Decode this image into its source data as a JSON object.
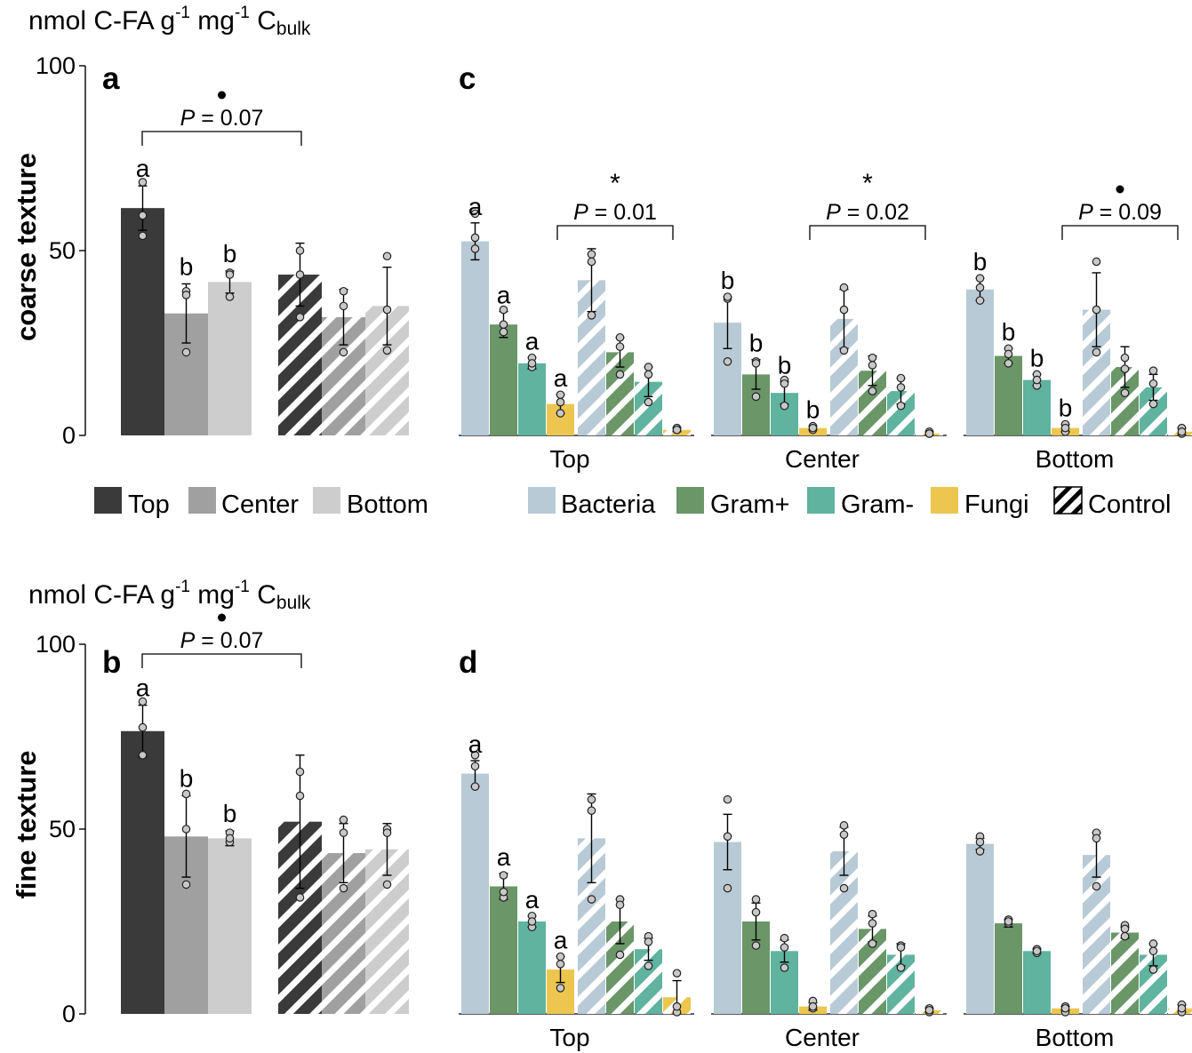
{
  "units_label": {
    "main": "nmol C-FA g",
    "sup1": "-1",
    "mid": " mg",
    "sup2": "-1",
    "c": " C",
    "sub": "bulk"
  },
  "row_labels": {
    "coarse": "coarse texture",
    "fine": "fine texture"
  },
  "colors": {
    "Top": "#3a3a3a",
    "Center": "#a0a0a0",
    "Bottom": "#cdcdcd",
    "Bacteria": "#b8cad6",
    "Gram+": "#6a9668",
    "Gram-": "#5fb39f",
    "Fungi": "#ecc64f"
  },
  "legend_depth": [
    "Top",
    "Center",
    "Bottom"
  ],
  "legend_group": [
    "Bacteria",
    "Gram+",
    "Gram-",
    "Fungi",
    "Control"
  ],
  "chart_data": [
    {
      "panel": "a",
      "type": "bar",
      "texture": "coarse texture",
      "ylabel": "nmol C-FA g-1 mg-1 Cbulk",
      "ylim": [
        0,
        100
      ],
      "yticks": [
        0,
        50,
        100
      ],
      "series": [
        {
          "name": "Top",
          "treatment": 61.5,
          "treatment_err": 6,
          "treatment_pts": [
            68.5,
            54,
            59.5
          ],
          "treatment_letter": "a",
          "control": 43.5,
          "control_err": 8.5,
          "control_pts": [
            50,
            32,
            43.5
          ]
        },
        {
          "name": "Center",
          "treatment": 33,
          "treatment_err": 8,
          "treatment_pts": [
            39,
            22.5,
            38
          ],
          "treatment_letter": "b",
          "control": 32,
          "control_err": 7.5,
          "control_pts": [
            39,
            22.5,
            35
          ]
        },
        {
          "name": "Bottom",
          "treatment": 41.5,
          "treatment_err": 3,
          "treatment_pts": [
            44,
            37.5,
            43.5
          ],
          "treatment_letter": "b",
          "control": 35,
          "control_err": 10.5,
          "control_pts": [
            48.5,
            23,
            34
          ]
        }
      ],
      "annotation": {
        "marker": "•",
        "p_label": "P",
        "p_value": " = 0.07"
      }
    },
    {
      "panel": "b",
      "type": "bar",
      "texture": "fine texture",
      "ylabel": "nmol C-FA g-1 mg-1 Cbulk",
      "ylim": [
        0,
        100
      ],
      "yticks": [
        0,
        50,
        100
      ],
      "series": [
        {
          "name": "Top",
          "treatment": 76.5,
          "treatment_err": 7,
          "treatment_pts": [
            84.5,
            70,
            77.5
          ],
          "treatment_letter": "a",
          "control": 52,
          "control_err": 18,
          "control_pts": [
            65.5,
            31.5,
            59
          ]
        },
        {
          "name": "Center",
          "treatment": 48,
          "treatment_err": 11,
          "treatment_pts": [
            59.5,
            35,
            50
          ],
          "treatment_letter": "b",
          "control": 43.5,
          "control_err": 8,
          "control_pts": [
            52.5,
            34,
            49
          ]
        },
        {
          "name": "Bottom",
          "treatment": 47.5,
          "treatment_err": 2,
          "treatment_pts": [
            49,
            46.5,
            47.5
          ],
          "treatment_letter": "b",
          "control": 44.5,
          "control_err": 7,
          "control_pts": [
            50,
            35,
            49
          ]
        }
      ],
      "annotation": {
        "marker": "•",
        "p_label": "P",
        "p_value": " = 0.07"
      }
    },
    {
      "panel": "c",
      "type": "bar",
      "texture": "coarse texture",
      "ylim": [
        0,
        100
      ],
      "categories": [
        "Top",
        "Center",
        "Bottom"
      ],
      "groups": [
        {
          "category": "Top",
          "treatment": [
            {
              "name": "Bacteria",
              "value": 52.5,
              "err": 5,
              "pts": [
                60,
                50.5,
                53.5
              ],
              "letter": "a"
            },
            {
              "name": "Gram+",
              "value": 30,
              "err": 3.5,
              "pts": [
                34,
                28,
                30
              ],
              "letter": "a"
            },
            {
              "name": "Gram-",
              "value": 19.5,
              "err": 1.5,
              "pts": [
                21,
                18.5,
                19.5
              ],
              "letter": "a"
            },
            {
              "name": "Fungi",
              "value": 8.5,
              "err": 2.5,
              "pts": [
                11,
                6,
                9
              ],
              "letter": "a"
            }
          ],
          "control": [
            {
              "name": "Bacteria",
              "value": 42,
              "err": 8.5,
              "pts": [
                49,
                32.5,
                47
              ]
            },
            {
              "name": "Gram+",
              "value": 22.5,
              "err": 4,
              "pts": [
                26.5,
                16.5,
                24
              ]
            },
            {
              "name": "Gram-",
              "value": 14.5,
              "err": 4,
              "pts": [
                18.5,
                9,
                16.5
              ]
            },
            {
              "name": "Fungi",
              "value": 1.5,
              "err": 0.5,
              "pts": [
                2,
                1.5,
                1.5
              ]
            }
          ],
          "annotation": {
            "marker": "*",
            "p_label": "P",
            "p_value": " = 0.01"
          }
        },
        {
          "category": "Center",
          "treatment": [
            {
              "name": "Bacteria",
              "value": 30.5,
              "err": 7,
              "pts": [
                37,
                20,
                37.5
              ],
              "letter": "b"
            },
            {
              "name": "Gram+",
              "value": 16.5,
              "err": 4,
              "pts": [
                20,
                10.5,
                19.5
              ],
              "letter": "b"
            },
            {
              "name": "Gram-",
              "value": 11.5,
              "err": 3,
              "pts": [
                15,
                8,
                14
              ],
              "letter": "b"
            },
            {
              "name": "Fungi",
              "value": 2,
              "err": 0.5,
              "pts": [
                2.5,
                1.5,
                2
              ],
              "letter": "b"
            }
          ],
          "control": [
            {
              "name": "Bacteria",
              "value": 31.5,
              "err": 8,
              "pts": [
                40,
                23,
                34
              ]
            },
            {
              "name": "Gram+",
              "value": 17.5,
              "err": 4,
              "pts": [
                21,
                12,
                19
              ]
            },
            {
              "name": "Gram-",
              "value": 12,
              "err": 3.5,
              "pts": [
                15.5,
                8,
                13
              ]
            },
            {
              "name": "Fungi",
              "value": 0.5,
              "err": 0.5,
              "pts": [
                1,
                0.5,
                0.5
              ]
            }
          ],
          "annotation": {
            "marker": "*",
            "p_label": "P",
            "p_value": " = 0.02"
          }
        },
        {
          "category": "Bottom",
          "treatment": [
            {
              "name": "Bacteria",
              "value": 39.5,
              "err": 3,
              "pts": [
                42.5,
                36.5,
                40
              ],
              "letter": "b"
            },
            {
              "name": "Gram+",
              "value": 21.5,
              "err": 2,
              "pts": [
                23.5,
                19.5,
                22
              ],
              "letter": "b"
            },
            {
              "name": "Gram-",
              "value": 15,
              "err": 1.5,
              "pts": [
                16.5,
                13.5,
                15
              ],
              "letter": "b"
            },
            {
              "name": "Fungi",
              "value": 2,
              "err": 1,
              "pts": [
                3,
                1,
                2
              ],
              "letter": "b"
            }
          ],
          "control": [
            {
              "name": "Bacteria",
              "value": 34,
              "err": 10,
              "pts": [
                47,
                22.5,
                34
              ]
            },
            {
              "name": "Gram+",
              "value": 18.5,
              "err": 5.5,
              "pts": [
                21,
                11.5,
                18
              ]
            },
            {
              "name": "Gram-",
              "value": 13,
              "err": 3.5,
              "pts": [
                17.5,
                8.5,
                14
              ]
            },
            {
              "name": "Fungi",
              "value": 1,
              "err": 1,
              "pts": [
                2,
                0.5,
                1
              ]
            }
          ],
          "annotation": {
            "marker": "•",
            "p_label": "P",
            "p_value": " = 0.09"
          }
        }
      ]
    },
    {
      "panel": "d",
      "type": "bar",
      "texture": "fine texture",
      "ylim": [
        0,
        100
      ],
      "categories": [
        "Top",
        "Center",
        "Bottom"
      ],
      "groups": [
        {
          "category": "Top",
          "treatment": [
            {
              "name": "Bacteria",
              "value": 65,
              "err": 3.5,
              "pts": [
                70,
                61.5,
                67
              ],
              "letter": "a"
            },
            {
              "name": "Gram+",
              "value": 34.5,
              "err": 3.5,
              "pts": [
                37.5,
                31.5,
                33
              ],
              "letter": "a"
            },
            {
              "name": "Gram-",
              "value": 25,
              "err": 1.5,
              "pts": [
                26.5,
                23.5,
                25
              ],
              "letter": "a"
            },
            {
              "name": "Fungi",
              "value": 12,
              "err": 3.5,
              "pts": [
                15.5,
                7,
                13.5
              ],
              "letter": "a"
            }
          ],
          "control": [
            {
              "name": "Bacteria",
              "value": 47.5,
              "err": 12,
              "pts": [
                58,
                31,
                55
              ]
            },
            {
              "name": "Gram+",
              "value": 25,
              "err": 6,
              "pts": [
                31,
                16,
                29.5
              ]
            },
            {
              "name": "Gram-",
              "value": 17.5,
              "err": 3,
              "pts": [
                21,
                13,
                19.5
              ]
            },
            {
              "name": "Fungi",
              "value": 4.5,
              "err": 4.5,
              "pts": [
                11,
                0.5,
                2
              ]
            }
          ]
        },
        {
          "category": "Center",
          "treatment": [
            {
              "name": "Bacteria",
              "value": 46.5,
              "err": 7.5,
              "pts": [
                58,
                34,
                48
              ]
            },
            {
              "name": "Gram+",
              "value": 25,
              "err": 5,
              "pts": [
                31,
                18.5,
                27.5
              ]
            },
            {
              "name": "Gram-",
              "value": 17,
              "err": 3,
              "pts": [
                20.5,
                12.5,
                18
              ]
            },
            {
              "name": "Fungi",
              "value": 2,
              "err": 1,
              "pts": [
                3.5,
                1.5,
                2
              ]
            }
          ],
          "control": [
            {
              "name": "Bacteria",
              "value": 44,
              "err": 6.5,
              "pts": [
                51,
                34,
                48.5
              ]
            },
            {
              "name": "Gram+",
              "value": 23,
              "err": 3.5,
              "pts": [
                27,
                19,
                24.5
              ]
            },
            {
              "name": "Gram-",
              "value": 16,
              "err": 3,
              "pts": [
                18.5,
                12.5,
                18
              ]
            },
            {
              "name": "Fungi",
              "value": 1,
              "err": 0.5,
              "pts": [
                1.5,
                0.5,
                1
              ]
            }
          ]
        },
        {
          "category": "Bottom",
          "treatment": [
            {
              "name": "Bacteria",
              "value": 46,
              "err": 1.5,
              "pts": [
                48,
                44,
                46.5
              ]
            },
            {
              "name": "Gram+",
              "value": 24.5,
              "err": 1,
              "pts": [
                25.5,
                24.5,
                25
              ]
            },
            {
              "name": "Gram-",
              "value": 17,
              "err": 0.5,
              "pts": [
                17.5,
                16.5,
                17
              ]
            },
            {
              "name": "Fungi",
              "value": 1.5,
              "err": 0.5,
              "pts": [
                2,
                0.5,
                1.5
              ]
            }
          ],
          "control": [
            {
              "name": "Bacteria",
              "value": 43,
              "err": 6,
              "pts": [
                49,
                34.5,
                47.5
              ]
            },
            {
              "name": "Gram+",
              "value": 22,
              "err": 1.5,
              "pts": [
                24,
                21,
                23
              ]
            },
            {
              "name": "Gram-",
              "value": 16,
              "err": 3,
              "pts": [
                19,
                12,
                17
              ]
            },
            {
              "name": "Fungi",
              "value": 1.5,
              "err": 1,
              "pts": [
                2.5,
                0.5,
                1.5
              ]
            }
          ]
        }
      ]
    }
  ]
}
